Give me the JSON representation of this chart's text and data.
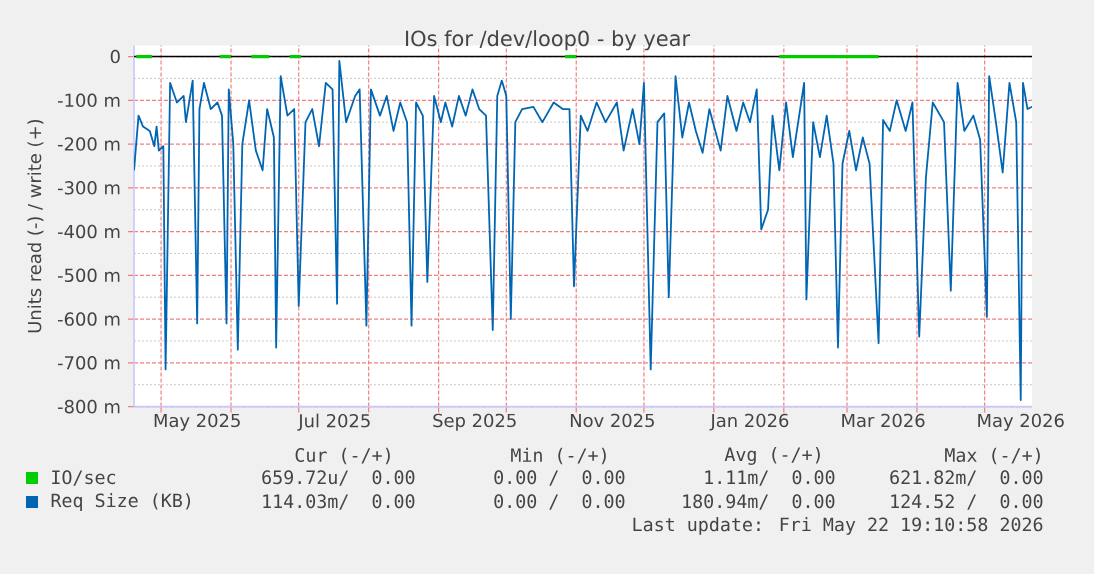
{
  "chart_data": {
    "type": "line",
    "title": "IOs for /dev/loop0 - by year",
    "ylabel": "Units read (-) / write (+)",
    "xlim": [
      "2025-04-19",
      "2026-05-22"
    ],
    "ylim": [
      -800,
      25
    ],
    "xticks": [
      {
        "value": "2025-05-01",
        "label": null
      },
      {
        "value": "2025-06-01",
        "label": null
      },
      {
        "value": "2025-07-01",
        "label": null
      },
      {
        "value": "2025-08-01",
        "label": null
      },
      {
        "value": "2025-09-01",
        "label": null
      },
      {
        "value": "2025-10-01",
        "label": null
      },
      {
        "value": "2025-11-01",
        "label": null
      },
      {
        "value": "2025-12-01",
        "label": null
      },
      {
        "value": "2026-01-01",
        "label": null
      },
      {
        "value": "2026-02-01",
        "label": null
      },
      {
        "value": "2026-03-01",
        "label": null
      },
      {
        "value": "2026-04-01",
        "label": null
      },
      {
        "value": "2026-05-01",
        "label": null
      },
      {
        "value": "2025-05-17",
        "label": "May 2025"
      },
      {
        "value": "2025-07-17",
        "label": "Jul 2025"
      },
      {
        "value": "2025-09-17",
        "label": "Sep 2025"
      },
      {
        "value": "2025-11-17",
        "label": "Nov 2025"
      },
      {
        "value": "2026-01-17",
        "label": "Jan 2026"
      },
      {
        "value": "2026-03-17",
        "label": "Mar 2026"
      },
      {
        "value": "2026-05-17",
        "label": "May 2026"
      }
    ],
    "yticks": [
      0,
      {
        "value": -100,
        "label": "-100 m"
      },
      {
        "value": -200,
        "label": "-200 m"
      },
      {
        "value": -300,
        "label": "-300 m"
      },
      {
        "value": -400,
        "label": "-400 m"
      },
      {
        "value": -500,
        "label": "-500 m"
      },
      {
        "value": -600,
        "label": "-600 m"
      },
      {
        "value": -700,
        "label": "-700 m"
      },
      {
        "value": -800,
        "label": "-800 m"
      }
    ],
    "grid": true,
    "legend": "bottom",
    "ref_lines": [
      {
        "axis": "y",
        "value": 0,
        "color": "#000000"
      }
    ],
    "series": [
      {
        "name": "IO/sec",
        "color": "#00cc00",
        "x": [
          "2025-04-20",
          "2025-04-27",
          "2025-04-28",
          "2025-05-27",
          "2025-06-01",
          "2025-06-02",
          "2025-06-10",
          "2025-06-18",
          "2025-06-19",
          "2025-06-27",
          "2025-07-02",
          "2025-07-03",
          "2025-10-27",
          "2025-11-01",
          "2025-11-02",
          "2026-01-30",
          "2026-03-15"
        ],
        "values": [
          0,
          0,
          null,
          0,
          0,
          null,
          0,
          0,
          null,
          0,
          0,
          null,
          0,
          0,
          null,
          0,
          0
        ]
      },
      {
        "name": "Req Size (KB)",
        "color": "#0066b3",
        "x": [
          "2025-04-19",
          "2025-04-21",
          "2025-04-23",
          "2025-04-26",
          "2025-04-28",
          "2025-04-29",
          "2025-04-30",
          "2025-05-02",
          "2025-05-03",
          "2025-05-05",
          "2025-05-08",
          "2025-05-11",
          "2025-05-12",
          "2025-05-15",
          "2025-05-17",
          "2025-05-18",
          "2025-05-20",
          "2025-05-23",
          "2025-05-26",
          "2025-05-28",
          "2025-05-30",
          "2025-05-31",
          "2025-06-02",
          "2025-06-04",
          "2025-06-06",
          "2025-06-09",
          "2025-06-12",
          "2025-06-15",
          "2025-06-17",
          "2025-06-20",
          "2025-06-21",
          "2025-06-23",
          "2025-06-26",
          "2025-06-29",
          "2025-07-01",
          "2025-07-04",
          "2025-07-07",
          "2025-07-10",
          "2025-07-13",
          "2025-07-16",
          "2025-07-18",
          "2025-07-19",
          "2025-07-22",
          "2025-07-26",
          "2025-07-28",
          "2025-07-31",
          "2025-08-02",
          "2025-08-06",
          "2025-08-09",
          "2025-08-12",
          "2025-08-15",
          "2025-08-18",
          "2025-08-20",
          "2025-08-22",
          "2025-08-25",
          "2025-08-27",
          "2025-08-30",
          "2025-09-02",
          "2025-09-04",
          "2025-09-07",
          "2025-09-10",
          "2025-09-13",
          "2025-09-16",
          "2025-09-19",
          "2025-09-22",
          "2025-09-25",
          "2025-09-27",
          "2025-09-29",
          "2025-10-01",
          "2025-10-03",
          "2025-10-05",
          "2025-10-08",
          "2025-10-13",
          "2025-10-17",
          "2025-10-22",
          "2025-10-26",
          "2025-10-29",
          "2025-10-31",
          "2025-11-03",
          "2025-11-06",
          "2025-11-10",
          "2025-11-14",
          "2025-11-19",
          "2025-11-22",
          "2025-11-26",
          "2025-11-29",
          "2025-12-01",
          "2025-12-04",
          "2025-12-07",
          "2025-12-10",
          "2025-12-12",
          "2025-12-15",
          "2025-12-18",
          "2025-12-21",
          "2025-12-24",
          "2025-12-27",
          "2025-12-30",
          "2026-01-04",
          "2026-01-07",
          "2026-01-11",
          "2026-01-14",
          "2026-01-17",
          "2026-01-20",
          "2026-01-22",
          "2026-01-25",
          "2026-01-27",
          "2026-01-30",
          "2026-02-02",
          "2026-02-05",
          "2026-02-10",
          "2026-02-11",
          "2026-02-14",
          "2026-02-17",
          "2026-02-20",
          "2026-02-23",
          "2026-02-25",
          "2026-02-27",
          "2026-03-02",
          "2026-03-05",
          "2026-03-08",
          "2026-03-11",
          "2026-03-15",
          "2026-03-17",
          "2026-03-20",
          "2026-03-23",
          "2026-03-27",
          "2026-03-30",
          "2026-04-02",
          "2026-04-05",
          "2026-04-08",
          "2026-04-13",
          "2026-04-16",
          "2026-04-19",
          "2026-04-22",
          "2026-04-26",
          "2026-04-29",
          "2026-05-02",
          "2026-05-03",
          "2026-05-06",
          "2026-05-09",
          "2026-05-12",
          "2026-05-15",
          "2026-05-17",
          "2026-05-18",
          "2026-05-20",
          "2026-05-22"
        ],
        "values": [
          -260,
          -135,
          -160,
          -170,
          -205,
          -160,
          -215,
          -205,
          -715,
          -60,
          -105,
          -90,
          -150,
          -55,
          -610,
          -120,
          -60,
          -120,
          -105,
          -135,
          -610,
          -75,
          -200,
          -670,
          -200,
          -100,
          -215,
          -260,
          -120,
          -185,
          -665,
          -45,
          -135,
          -120,
          -570,
          -150,
          -120,
          -205,
          -60,
          -75,
          -565,
          -10,
          -150,
          -90,
          -75,
          -615,
          -75,
          -135,
          -90,
          -170,
          -105,
          -150,
          -615,
          -105,
          -135,
          -515,
          -90,
          -150,
          -105,
          -160,
          -90,
          -135,
          -75,
          -120,
          -135,
          -625,
          -90,
          -55,
          -90,
          -600,
          -150,
          -120,
          -115,
          -150,
          -105,
          -120,
          -120,
          -525,
          -135,
          -170,
          -105,
          -150,
          -105,
          -215,
          -120,
          -200,
          -60,
          -715,
          -150,
          -130,
          -550,
          -45,
          -185,
          -105,
          -170,
          -220,
          -120,
          -215,
          -90,
          -170,
          -105,
          -150,
          -75,
          -395,
          -350,
          -135,
          -260,
          -105,
          -230,
          -60,
          -555,
          -150,
          -230,
          -135,
          -245,
          -665,
          -245,
          -170,
          -260,
          -185,
          -245,
          -655,
          -145,
          -170,
          -100,
          -170,
          -105,
          -640,
          -275,
          -105,
          -150,
          -535,
          -60,
          -170,
          -135,
          -190,
          -595,
          -45,
          -150,
          -265,
          -60,
          -150,
          -785,
          -60,
          -120,
          -115
        ]
      }
    ],
    "annotations": [
      "Cur (-/+)",
      "Min (-/+)",
      "Avg (-/+)",
      "Max (-/+)",
      "659.72u/  0.00",
      "0.00 /  0.00",
      "1.11m/  0.00",
      "621.82m/  0.00",
      "114.03m/  0.00",
      "0.00 /  0.00",
      "180.94m/  0.00",
      "124.52 /  0.00",
      "Last update: Fri May 22 19:10:58 2026"
    ]
  }
}
